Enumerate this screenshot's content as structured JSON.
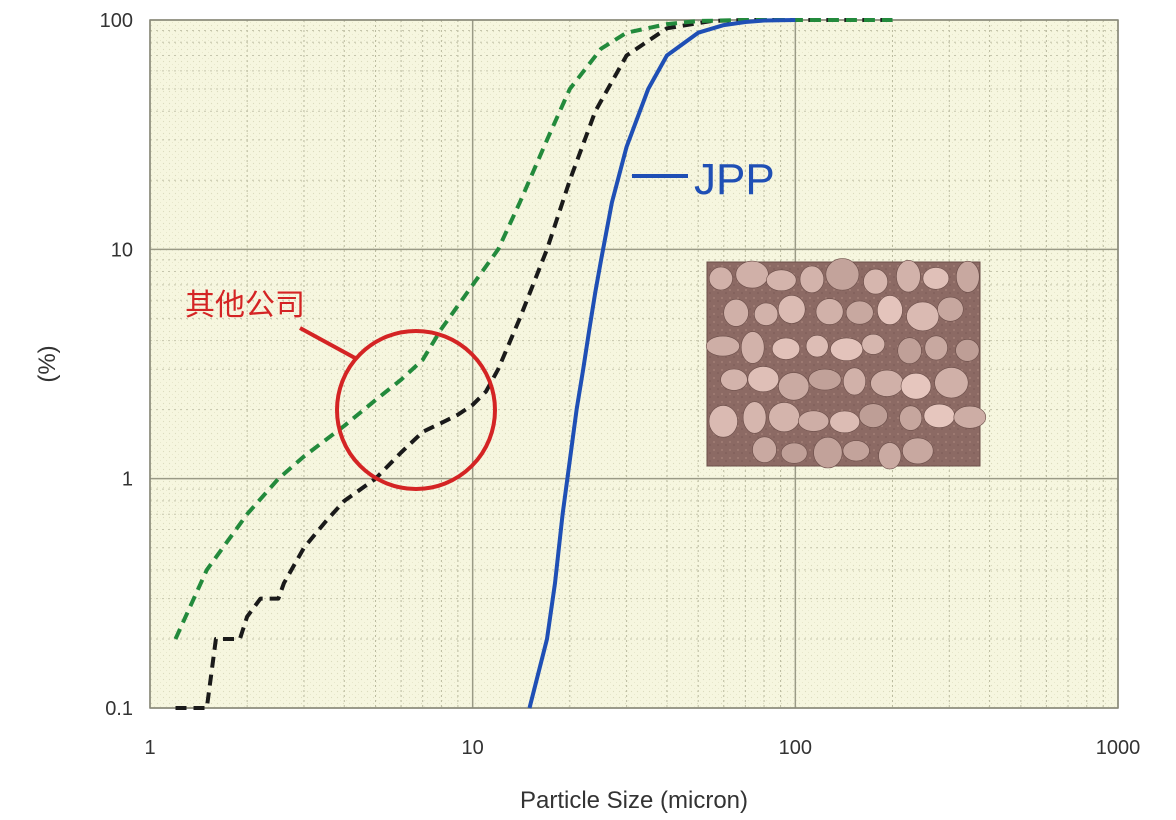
{
  "chart_data": {
    "type": "line",
    "title": "",
    "xlabel": "Particle Size (micron)",
    "ylabel": "(%)",
    "x_scale": "log",
    "y_scale": "log",
    "xlim": [
      1,
      1000
    ],
    "ylim": [
      0.1,
      100
    ],
    "x_ticks": [
      {
        "value": 1,
        "label": "1"
      },
      {
        "value": 10,
        "label": "10"
      },
      {
        "value": 100,
        "label": "100"
      },
      {
        "value": 1000,
        "label": "1000"
      }
    ],
    "y_ticks": [
      {
        "value": 0.1,
        "label": "0.1"
      },
      {
        "value": 1,
        "label": "1"
      },
      {
        "value": 10,
        "label": "10"
      },
      {
        "value": 100,
        "label": "100"
      }
    ],
    "grid": true,
    "background": "#f6f6df",
    "series": [
      {
        "name": "JPP",
        "color": "#1f4fb5",
        "style": "solid",
        "x": [
          15,
          17,
          18,
          19,
          20,
          21,
          22,
          23,
          24,
          25,
          27,
          30,
          35,
          40,
          50,
          60,
          70,
          80,
          100
        ],
        "y": [
          0.1,
          0.2,
          0.35,
          0.7,
          1.2,
          2,
          3,
          4.5,
          6.5,
          9,
          16,
          28,
          50,
          70,
          88,
          95,
          98,
          99.5,
          100
        ]
      },
      {
        "name": "其他公司",
        "color": "#1a1a1a",
        "style": "dashed",
        "x": [
          1.2,
          1.5,
          1.6,
          1.9,
          2.0,
          2.2,
          2.5,
          2.6,
          3.0,
          3.5,
          4.0,
          5.0,
          6.0,
          7.0,
          8.0,
          9.0,
          10,
          11,
          12,
          14,
          17,
          20,
          24,
          30,
          40,
          55,
          70,
          100,
          200
        ],
        "y": [
          0.1,
          0.1,
          0.2,
          0.2,
          0.25,
          0.3,
          0.3,
          0.35,
          0.5,
          0.65,
          0.8,
          1.0,
          1.3,
          1.6,
          1.75,
          1.9,
          2.1,
          2.4,
          3,
          5,
          10,
          20,
          40,
          70,
          92,
          99,
          100,
          100,
          100
        ]
      },
      {
        "name": "其他公司",
        "color": "#238a3c",
        "style": "dashed",
        "x": [
          1.2,
          1.5,
          2,
          2.5,
          3,
          4,
          5,
          6,
          7,
          8,
          10,
          12,
          14,
          17,
          20,
          25,
          30,
          40,
          50,
          70,
          100,
          200
        ],
        "y": [
          0.2,
          0.4,
          0.7,
          1.0,
          1.25,
          1.7,
          2.2,
          2.7,
          3.3,
          4.5,
          7,
          10,
          16,
          30,
          50,
          75,
          88,
          96,
          99,
          100,
          100,
          100
        ]
      }
    ],
    "annotations": [
      {
        "text": "JPP",
        "target_series": "JPP",
        "color": "#1f4fb5"
      },
      {
        "text": "其他公司",
        "color": "#d42424",
        "type": "circle-callout",
        "circle_center": [
          7,
          2
        ],
        "circle_radius_decades": 0.25
      }
    ],
    "inset_image": "micrograph of rounded particles (brownish-pink)"
  }
}
